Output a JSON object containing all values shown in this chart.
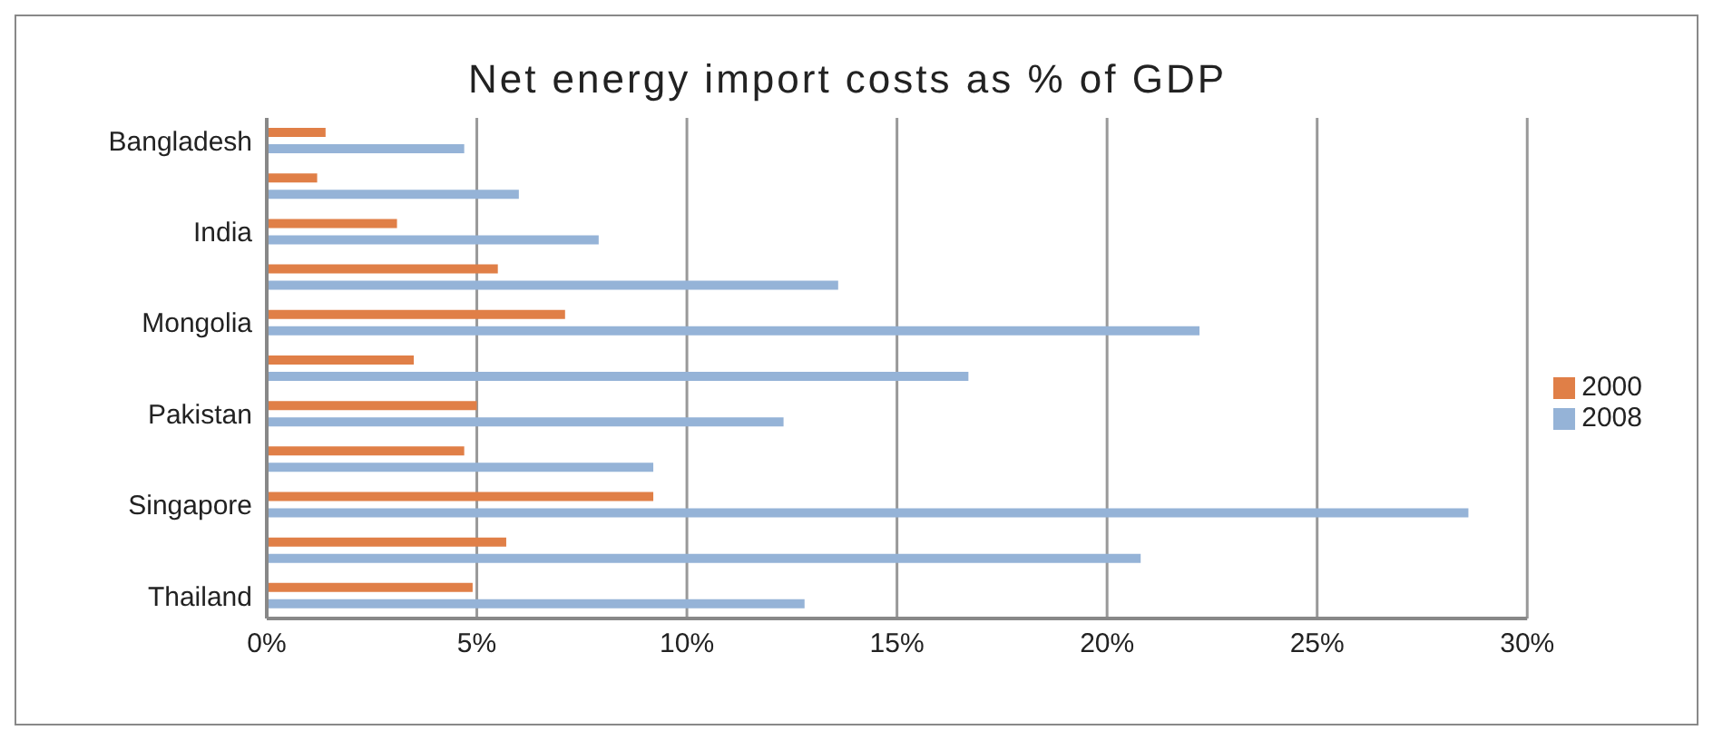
{
  "chart_data": {
    "type": "bar",
    "orientation": "horizontal",
    "title": "Net energy import costs as % of GDP",
    "categories": [
      "Bangladesh",
      null,
      "India",
      null,
      "Mongolia",
      null,
      "Pakistan",
      null,
      "Singapore",
      null,
      "Thailand"
    ],
    "series": [
      {
        "name": "2000",
        "color": "#e07f47",
        "values": [
          1.4,
          1.2,
          3.1,
          5.5,
          7.1,
          3.5,
          5.0,
          4.7,
          9.2,
          5.7,
          4.9
        ]
      },
      {
        "name": "2008",
        "color": "#95b3d7",
        "values": [
          4.7,
          6.0,
          7.9,
          13.6,
          22.2,
          16.7,
          12.3,
          9.2,
          28.6,
          20.8,
          12.8
        ]
      }
    ],
    "xlim": [
      0,
      30
    ],
    "xticks": [
      {
        "value": 0,
        "label": "0%"
      },
      {
        "value": 5,
        "label": "5%"
      },
      {
        "value": 10,
        "label": "10%"
      },
      {
        "value": 15,
        "label": "15%"
      },
      {
        "value": 20,
        "label": "20%"
      },
      {
        "value": 25,
        "label": "25%"
      },
      {
        "value": 30,
        "label": "30%"
      }
    ],
    "grid": "x",
    "legend": "right"
  }
}
